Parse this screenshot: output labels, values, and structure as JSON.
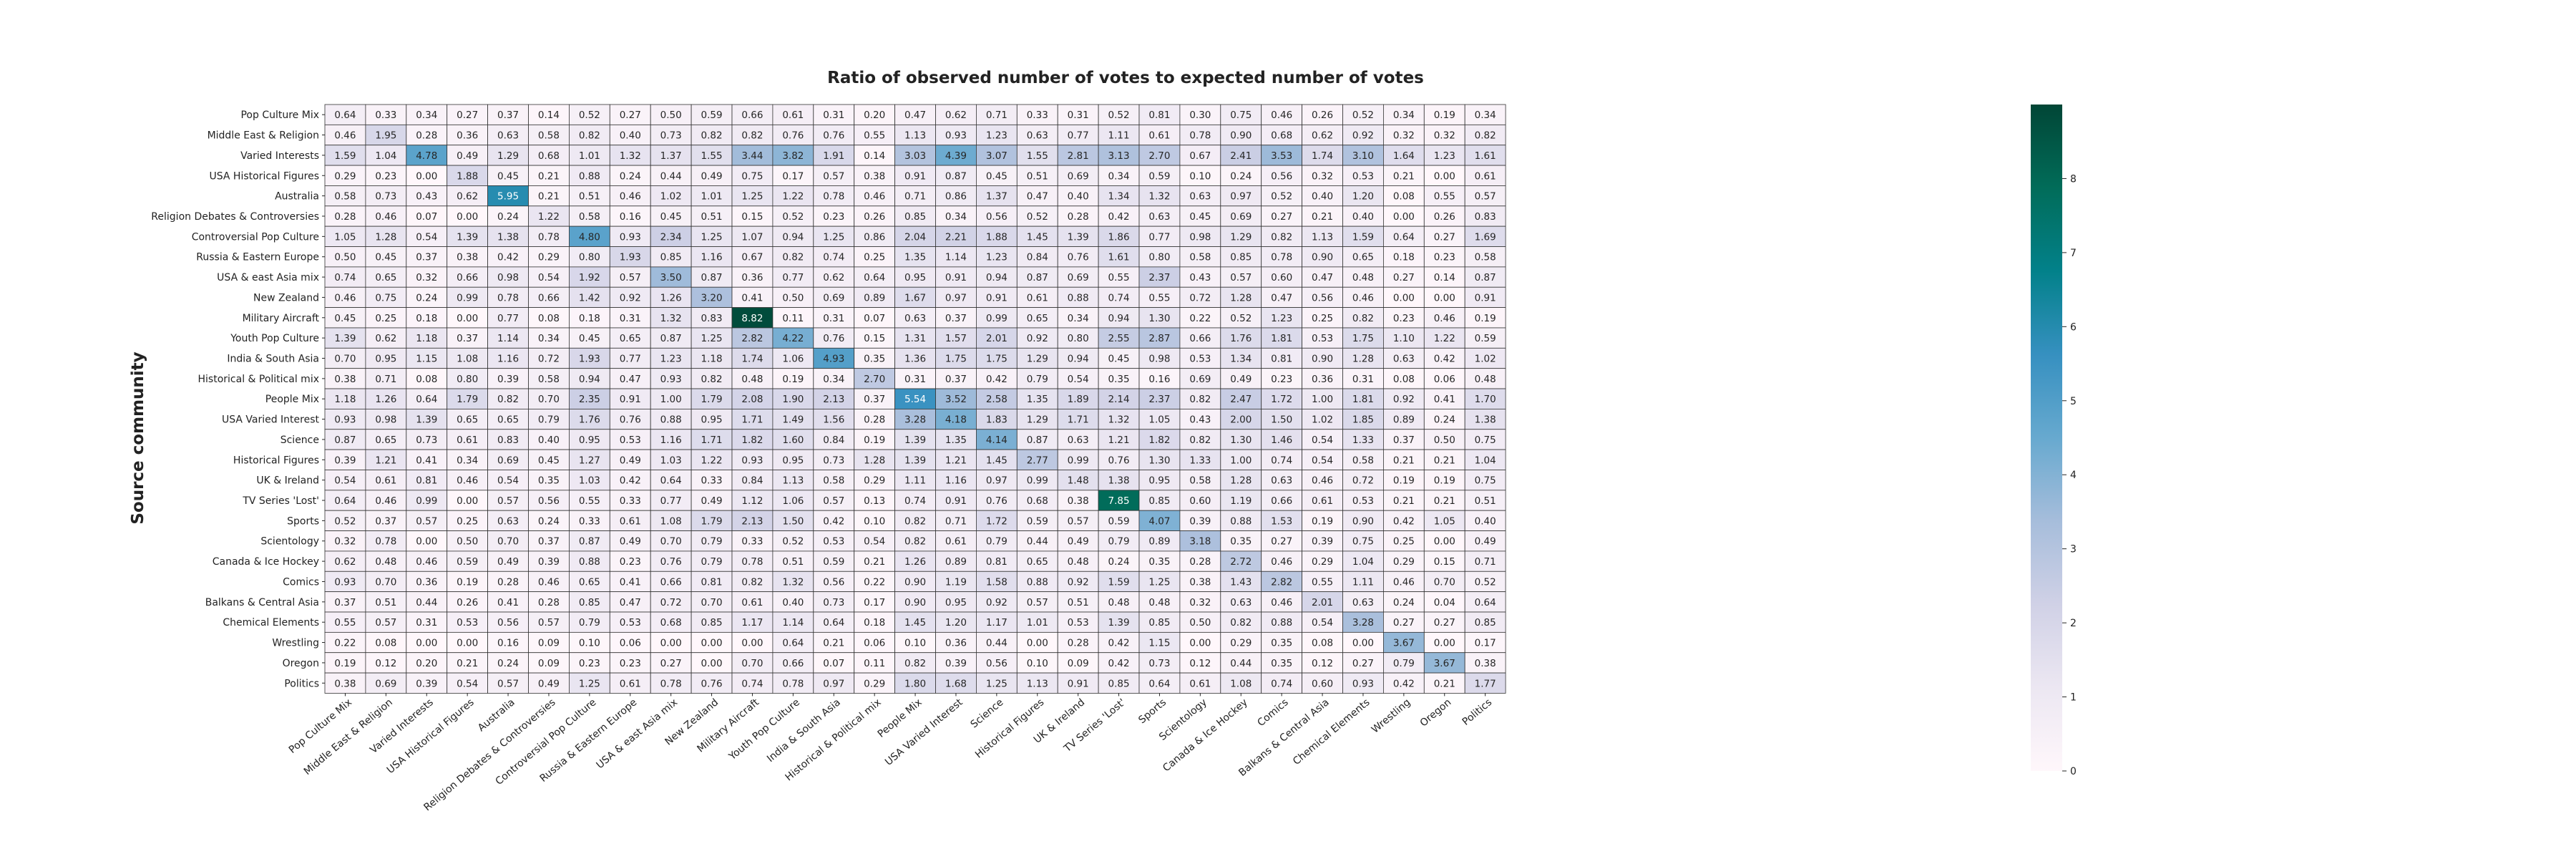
{
  "chart_data": {
    "type": "heatmap",
    "title": "Ratio of observed number of votes to expected number of votes",
    "ylabel": "Source community",
    "xlabel": "",
    "rows": [
      "Pop Culture Mix",
      "Middle East & Religion",
      "Varied Interests",
      "USA Historical Figures",
      "Australia",
      "Religion Debates & Controversies",
      "Controversial Pop Culture",
      "Russia & Eastern Europe",
      "USA & east Asia mix",
      "New Zealand",
      "Military Aircraft",
      "Youth Pop Culture",
      "India & South Asia",
      "Historical & Political mix",
      "People Mix",
      "USA Varied Interest",
      "Science",
      "Historical Figures",
      "UK & Ireland",
      "TV Series 'Lost'",
      "Sports",
      "Scientology",
      "Canada & Ice Hockey",
      "Comics",
      "Balkans & Central Asia",
      "Chemical Elements",
      "Wrestling",
      "Oregon",
      "Politics"
    ],
    "columns": [
      "Pop Culture Mix",
      "Middle East & Religion",
      "Varied Interests",
      "USA Historical Figures",
      "Australia",
      "Religion Debates & Controversies",
      "Controversial Pop Culture",
      "Russia & Eastern Europe",
      "USA & east Asia mix",
      "New Zealand",
      "Military Aircraft",
      "Youth Pop Culture",
      "India & South Asia",
      "Historical & Political mix",
      "People Mix",
      "USA Varied Interest",
      "Science",
      "Historical Figures",
      "UK & Ireland",
      "TV Series 'Lost'",
      "Sports",
      "Scientology",
      "Canada & Ice Hockey",
      "Comics",
      "Balkans & Central Asia",
      "Chemical Elements",
      "Wrestling",
      "Oregon",
      "Politics"
    ],
    "values": [
      [
        "0.64",
        "0.33",
        "0.34",
        "0.27",
        "0.37",
        "0.14",
        "0.52",
        "0.27",
        "0.50",
        "0.59",
        "0.66",
        "0.61",
        "0.31",
        "0.20",
        "0.47",
        "0.62",
        "0.71",
        "0.33",
        "0.31",
        "0.52",
        "0.81",
        "0.30",
        "0.75",
        "0.46",
        "0.26",
        "0.52",
        "0.34",
        "0.19",
        "0.34"
      ],
      [
        "0.46",
        "1.95",
        "0.28",
        "0.36",
        "0.63",
        "0.58",
        "0.82",
        "0.40",
        "0.73",
        "0.82",
        "0.82",
        "0.76",
        "0.76",
        "0.55",
        "1.13",
        "0.93",
        "1.23",
        "0.63",
        "0.77",
        "1.11",
        "0.61",
        "0.78",
        "0.90",
        "0.68",
        "0.62",
        "0.92",
        "0.32",
        "0.32",
        "0.82"
      ],
      [
        "1.59",
        "1.04",
        "4.78",
        "0.49",
        "1.29",
        "0.68",
        "1.01",
        "1.32",
        "1.37",
        "1.55",
        "3.44",
        "3.82",
        "1.91",
        "0.14",
        "3.03",
        "4.39",
        "3.07",
        "1.55",
        "2.81",
        "3.13",
        "2.70",
        "0.67",
        "2.41",
        "3.53",
        "1.74",
        "3.10",
        "1.64",
        "1.23",
        "1.61"
      ],
      [
        "0.29",
        "0.23",
        "0.00",
        "1.88",
        "0.45",
        "0.21",
        "0.88",
        "0.24",
        "0.44",
        "0.49",
        "0.75",
        "0.17",
        "0.57",
        "0.38",
        "0.91",
        "0.87",
        "0.45",
        "0.51",
        "0.69",
        "0.34",
        "0.59",
        "0.10",
        "0.24",
        "0.56",
        "0.32",
        "0.53",
        "0.21",
        "0.00",
        "0.61"
      ],
      [
        "0.58",
        "0.73",
        "0.43",
        "0.62",
        "5.95",
        "0.21",
        "0.51",
        "0.46",
        "1.02",
        "1.01",
        "1.25",
        "1.22",
        "0.78",
        "0.46",
        "0.71",
        "0.86",
        "1.37",
        "0.47",
        "0.40",
        "1.34",
        "1.32",
        "0.63",
        "0.97",
        "0.52",
        "0.40",
        "1.20",
        "0.08",
        "0.55",
        "0.57"
      ],
      [
        "0.28",
        "0.46",
        "0.07",
        "0.00",
        "0.24",
        "1.22",
        "0.58",
        "0.16",
        "0.45",
        "0.51",
        "0.15",
        "0.52",
        "0.23",
        "0.26",
        "0.85",
        "0.34",
        "0.56",
        "0.52",
        "0.28",
        "0.42",
        "0.63",
        "0.45",
        "0.69",
        "0.27",
        "0.21",
        "0.40",
        "0.00",
        "0.26",
        "0.83"
      ],
      [
        "1.05",
        "1.28",
        "0.54",
        "1.39",
        "1.38",
        "0.78",
        "4.80",
        "0.93",
        "2.34",
        "1.25",
        "1.07",
        "0.94",
        "1.25",
        "0.86",
        "2.04",
        "2.21",
        "1.88",
        "1.45",
        "1.39",
        "1.86",
        "0.77",
        "0.98",
        "1.29",
        "0.82",
        "1.13",
        "1.59",
        "0.64",
        "0.27",
        "1.69"
      ],
      [
        "0.50",
        "0.45",
        "0.37",
        "0.38",
        "0.42",
        "0.29",
        "0.80",
        "1.93",
        "0.85",
        "1.16",
        "0.67",
        "0.82",
        "0.74",
        "0.25",
        "1.35",
        "1.14",
        "1.23",
        "0.84",
        "0.76",
        "1.61",
        "0.80",
        "0.58",
        "0.85",
        "0.78",
        "0.90",
        "0.65",
        "0.18",
        "0.23",
        "0.58"
      ],
      [
        "0.74",
        "0.65",
        "0.32",
        "0.66",
        "0.98",
        "0.54",
        "1.92",
        "0.57",
        "3.50",
        "0.87",
        "0.36",
        "0.77",
        "0.62",
        "0.64",
        "0.95",
        "0.91",
        "0.94",
        "0.87",
        "0.69",
        "0.55",
        "2.37",
        "0.43",
        "0.57",
        "0.60",
        "0.47",
        "0.48",
        "0.27",
        "0.14",
        "0.87"
      ],
      [
        "0.46",
        "0.75",
        "0.24",
        "0.99",
        "0.78",
        "0.66",
        "1.42",
        "0.92",
        "1.26",
        "3.20",
        "0.41",
        "0.50",
        "0.69",
        "0.89",
        "1.67",
        "0.97",
        "0.91",
        "0.61",
        "0.88",
        "0.74",
        "0.55",
        "0.72",
        "1.28",
        "0.47",
        "0.56",
        "0.46",
        "0.00",
        "0.00",
        "0.91"
      ],
      [
        "0.45",
        "0.25",
        "0.18",
        "0.00",
        "0.77",
        "0.08",
        "0.18",
        "0.31",
        "1.32",
        "0.83",
        "8.82",
        "0.11",
        "0.31",
        "0.07",
        "0.63",
        "0.37",
        "0.99",
        "0.65",
        "0.34",
        "0.94",
        "1.30",
        "0.22",
        "0.52",
        "1.23",
        "0.25",
        "0.82",
        "0.23",
        "0.46",
        "0.19"
      ],
      [
        "1.39",
        "0.62",
        "1.18",
        "0.37",
        "1.14",
        "0.34",
        "0.45",
        "0.65",
        "0.87",
        "1.25",
        "2.82",
        "4.22",
        "0.76",
        "0.15",
        "1.31",
        "1.57",
        "2.01",
        "0.92",
        "0.80",
        "2.55",
        "2.87",
        "0.66",
        "1.76",
        "1.81",
        "0.53",
        "1.75",
        "1.10",
        "1.22",
        "0.59"
      ],
      [
        "0.70",
        "0.95",
        "1.15",
        "1.08",
        "1.16",
        "0.72",
        "1.93",
        "0.77",
        "1.23",
        "1.18",
        "1.74",
        "1.06",
        "4.93",
        "0.35",
        "1.36",
        "1.75",
        "1.75",
        "1.29",
        "0.94",
        "0.45",
        "0.98",
        "0.53",
        "1.34",
        "0.81",
        "0.90",
        "1.28",
        "0.63",
        "0.42",
        "1.02"
      ],
      [
        "0.38",
        "0.71",
        "0.08",
        "0.80",
        "0.39",
        "0.58",
        "0.94",
        "0.47",
        "0.93",
        "0.82",
        "0.48",
        "0.19",
        "0.34",
        "2.70",
        "0.31",
        "0.37",
        "0.42",
        "0.79",
        "0.54",
        "0.35",
        "0.16",
        "0.69",
        "0.49",
        "0.23",
        "0.36",
        "0.31",
        "0.08",
        "0.06",
        "0.48"
      ],
      [
        "1.18",
        "1.26",
        "0.64",
        "1.79",
        "0.82",
        "0.70",
        "2.35",
        "0.91",
        "1.00",
        "1.79",
        "2.08",
        "1.90",
        "2.13",
        "0.37",
        "5.54",
        "3.52",
        "2.58",
        "1.35",
        "1.89",
        "2.14",
        "2.37",
        "0.82",
        "2.47",
        "1.72",
        "1.00",
        "1.81",
        "0.92",
        "0.41",
        "1.70"
      ],
      [
        "0.93",
        "0.98",
        "1.39",
        "0.65",
        "0.65",
        "0.79",
        "1.76",
        "0.76",
        "0.88",
        "0.95",
        "1.71",
        "1.49",
        "1.56",
        "0.28",
        "3.28",
        "4.18",
        "1.83",
        "1.29",
        "1.71",
        "1.32",
        "1.05",
        "0.43",
        "2.00",
        "1.50",
        "1.02",
        "1.85",
        "0.89",
        "0.24",
        "1.38"
      ],
      [
        "0.87",
        "0.65",
        "0.73",
        "0.61",
        "0.83",
        "0.40",
        "0.95",
        "0.53",
        "1.16",
        "1.71",
        "1.82",
        "1.60",
        "0.84",
        "0.19",
        "1.39",
        "1.35",
        "4.14",
        "0.87",
        "0.63",
        "1.21",
        "1.82",
        "0.82",
        "1.30",
        "1.46",
        "0.54",
        "1.33",
        "0.37",
        "0.50",
        "0.75"
      ],
      [
        "0.39",
        "1.21",
        "0.41",
        "0.34",
        "0.69",
        "0.45",
        "1.27",
        "0.49",
        "1.03",
        "1.22",
        "0.93",
        "0.95",
        "0.73",
        "1.28",
        "1.39",
        "1.21",
        "1.45",
        "2.77",
        "0.99",
        "0.76",
        "1.30",
        "1.33",
        "1.00",
        "0.74",
        "0.54",
        "0.58",
        "0.21",
        "0.21",
        "1.04"
      ],
      [
        "0.54",
        "0.61",
        "0.81",
        "0.46",
        "0.54",
        "0.35",
        "1.03",
        "0.42",
        "0.64",
        "0.33",
        "0.84",
        "1.13",
        "0.58",
        "0.29",
        "1.11",
        "1.16",
        "0.97",
        "0.99",
        "1.48",
        "1.38",
        "0.95",
        "0.58",
        "1.28",
        "0.63",
        "0.46",
        "0.72",
        "0.19",
        "0.19",
        "0.75"
      ],
      [
        "0.64",
        "0.46",
        "0.99",
        "0.00",
        "0.57",
        "0.56",
        "0.55",
        "0.33",
        "0.77",
        "0.49",
        "1.12",
        "1.06",
        "0.57",
        "0.13",
        "0.74",
        "0.91",
        "0.76",
        "0.68",
        "0.38",
        "7.85",
        "0.85",
        "0.60",
        "1.19",
        "0.66",
        "0.61",
        "0.53",
        "0.21",
        "0.21",
        "0.51"
      ],
      [
        "0.52",
        "0.37",
        "0.57",
        "0.25",
        "0.63",
        "0.24",
        "0.33",
        "0.61",
        "1.08",
        "1.79",
        "2.13",
        "1.50",
        "0.42",
        "0.10",
        "0.82",
        "0.71",
        "1.72",
        "0.59",
        "0.57",
        "0.59",
        "4.07",
        "0.39",
        "0.88",
        "1.53",
        "0.19",
        "0.90",
        "0.42",
        "1.05",
        "0.40"
      ],
      [
        "0.32",
        "0.78",
        "0.00",
        "0.50",
        "0.70",
        "0.37",
        "0.87",
        "0.49",
        "0.70",
        "0.79",
        "0.33",
        "0.52",
        "0.53",
        "0.54",
        "0.82",
        "0.61",
        "0.79",
        "0.44",
        "0.49",
        "0.79",
        "0.89",
        "3.18",
        "0.35",
        "0.27",
        "0.39",
        "0.75",
        "0.25",
        "0.00",
        "0.49"
      ],
      [
        "0.62",
        "0.48",
        "0.46",
        "0.59",
        "0.49",
        "0.39",
        "0.88",
        "0.23",
        "0.76",
        "0.79",
        "0.78",
        "0.51",
        "0.59",
        "0.21",
        "1.26",
        "0.89",
        "0.81",
        "0.65",
        "0.48",
        "0.24",
        "0.35",
        "0.28",
        "2.72",
        "0.46",
        "0.29",
        "1.04",
        "0.29",
        "0.15",
        "0.71"
      ],
      [
        "0.93",
        "0.70",
        "0.36",
        "0.19",
        "0.28",
        "0.46",
        "0.65",
        "0.41",
        "0.66",
        "0.81",
        "0.82",
        "1.32",
        "0.56",
        "0.22",
        "0.90",
        "1.19",
        "1.58",
        "0.88",
        "0.92",
        "1.59",
        "1.25",
        "0.38",
        "1.43",
        "2.82",
        "0.55",
        "1.11",
        "0.46",
        "0.70",
        "0.52"
      ],
      [
        "0.37",
        "0.51",
        "0.44",
        "0.26",
        "0.41",
        "0.28",
        "0.85",
        "0.47",
        "0.72",
        "0.70",
        "0.61",
        "0.40",
        "0.73",
        "0.17",
        "0.90",
        "0.95",
        "0.92",
        "0.57",
        "0.51",
        "0.48",
        "0.48",
        "0.32",
        "0.63",
        "0.46",
        "2.01",
        "0.63",
        "0.24",
        "0.04",
        "0.64"
      ],
      [
        "0.55",
        "0.57",
        "0.31",
        "0.53",
        "0.56",
        "0.57",
        "0.79",
        "0.53",
        "0.68",
        "0.85",
        "1.17",
        "1.14",
        "0.64",
        "0.18",
        "1.45",
        "1.20",
        "1.17",
        "1.01",
        "0.53",
        "1.39",
        "0.85",
        "0.50",
        "0.82",
        "0.88",
        "0.54",
        "3.28",
        "0.27",
        "0.27",
        "0.85"
      ],
      [
        "0.22",
        "0.08",
        "0.00",
        "0.00",
        "0.16",
        "0.09",
        "0.10",
        "0.06",
        "0.00",
        "0.00",
        "0.00",
        "0.64",
        "0.21",
        "0.06",
        "0.10",
        "0.36",
        "0.44",
        "0.00",
        "0.28",
        "0.42",
        "1.15",
        "0.00",
        "0.29",
        "0.35",
        "0.08",
        "0.00",
        "3.67",
        "0.00",
        "0.17"
      ],
      [
        "0.19",
        "0.12",
        "0.20",
        "0.21",
        "0.24",
        "0.09",
        "0.23",
        "0.23",
        "0.27",
        "0.00",
        "0.70",
        "0.66",
        "0.07",
        "0.11",
        "0.82",
        "0.39",
        "0.56",
        "0.10",
        "0.09",
        "0.42",
        "0.73",
        "0.12",
        "0.44",
        "0.35",
        "0.12",
        "0.27",
        "0.79",
        "3.67",
        "0.38"
      ],
      [
        "0.38",
        "0.69",
        "0.39",
        "0.54",
        "0.57",
        "0.49",
        "1.25",
        "0.61",
        "0.78",
        "0.76",
        "0.74",
        "0.78",
        "0.97",
        "0.29",
        "1.80",
        "1.68",
        "1.25",
        "1.13",
        "0.91",
        "0.85",
        "0.64",
        "0.61",
        "1.08",
        "0.74",
        "0.60",
        "0.93",
        "0.42",
        "0.21",
        "1.77"
      ]
    ],
    "colorbar": {
      "min": 0,
      "max": 9,
      "ticks": [
        "0",
        "1",
        "2",
        "3",
        "4",
        "5",
        "6",
        "7",
        "8"
      ],
      "colors": [
        "#fff7fb",
        "#ece7f2",
        "#d0d1e6",
        "#a6bddb",
        "#67a9cf",
        "#3690c0",
        "#02818a",
        "#016c59",
        "#014636"
      ]
    },
    "grid": true
  }
}
